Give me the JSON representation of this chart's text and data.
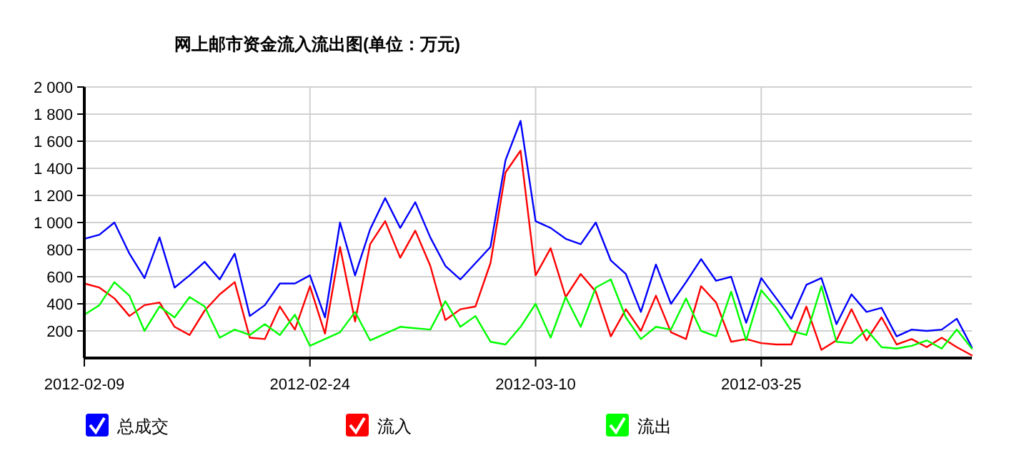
{
  "chart_data": {
    "type": "line",
    "title": "网上邮市资金流入流出图(单位：万元)",
    "x": [
      "2012-02-09",
      "2012-02-10",
      "2012-02-11",
      "2012-02-12",
      "2012-02-13",
      "2012-02-14",
      "2012-02-15",
      "2012-02-16",
      "2012-02-17",
      "2012-02-18",
      "2012-02-19",
      "2012-02-20",
      "2012-02-21",
      "2012-02-22",
      "2012-02-23",
      "2012-02-24",
      "2012-02-25",
      "2012-02-26",
      "2012-02-27",
      "2012-02-28",
      "2012-02-29",
      "2012-03-01",
      "2012-03-02",
      "2012-03-03",
      "2012-03-04",
      "2012-03-05",
      "2012-03-06",
      "2012-03-07",
      "2012-03-08",
      "2012-03-09",
      "2012-03-10",
      "2012-03-11",
      "2012-03-12",
      "2012-03-13",
      "2012-03-14",
      "2012-03-15",
      "2012-03-16",
      "2012-03-17",
      "2012-03-18",
      "2012-03-19",
      "2012-03-20",
      "2012-03-21",
      "2012-03-22",
      "2012-03-23",
      "2012-03-24",
      "2012-03-25",
      "2012-03-26",
      "2012-03-27",
      "2012-03-28",
      "2012-03-29",
      "2012-03-30",
      "2012-03-31",
      "2012-04-01",
      "2012-04-02",
      "2012-04-03",
      "2012-04-04",
      "2012-04-05",
      "2012-04-06",
      "2012-04-07",
      "2012-04-08"
    ],
    "series": [
      {
        "name": "总成交",
        "color": "#0000ff",
        "values": [
          880,
          910,
          1000,
          770,
          590,
          890,
          520,
          610,
          710,
          580,
          770,
          310,
          390,
          550,
          550,
          610,
          300,
          1000,
          610,
          950,
          1180,
          960,
          1150,
          890,
          680,
          580,
          700,
          820,
          1460,
          1750,
          1010,
          960,
          880,
          840,
          1000,
          720,
          620,
          340,
          690,
          400,
          560,
          730,
          570,
          600,
          260,
          590,
          440,
          290,
          540,
          590,
          250,
          470,
          340,
          370,
          160,
          210,
          200,
          210,
          290,
          80
        ]
      },
      {
        "name": "流入",
        "color": "#ff0000",
        "values": [
          550,
          520,
          440,
          310,
          390,
          410,
          230,
          170,
          350,
          470,
          560,
          150,
          140,
          380,
          210,
          530,
          180,
          820,
          270,
          840,
          1010,
          740,
          940,
          680,
          280,
          360,
          380,
          700,
          1370,
          1530,
          610,
          810,
          450,
          620,
          490,
          160,
          360,
          200,
          460,
          190,
          140,
          530,
          410,
          120,
          140,
          110,
          100,
          100,
          380,
          60,
          130,
          360,
          130,
          300,
          100,
          140,
          80,
          150,
          80,
          20
        ]
      },
      {
        "name": "流出",
        "color": "#00ff00",
        "values": [
          320,
          390,
          560,
          460,
          200,
          380,
          300,
          450,
          380,
          150,
          210,
          170,
          250,
          170,
          320,
          90,
          140,
          190,
          340,
          130,
          180,
          230,
          220,
          210,
          420,
          230,
          310,
          120,
          100,
          230,
          400,
          150,
          450,
          230,
          520,
          580,
          300,
          140,
          230,
          210,
          440,
          200,
          160,
          490,
          130,
          500,
          370,
          200,
          170,
          530,
          120,
          110,
          210,
          80,
          70,
          90,
          130,
          70,
          210,
          70
        ]
      }
    ],
    "xlim": [
      "2012-02-09",
      "2012-04-08"
    ],
    "xticks": [
      "2012-02-09",
      "2012-02-24",
      "2012-03-10",
      "2012-03-25"
    ],
    "ylim": [
      0,
      2000
    ],
    "yticks": [
      {
        "value": 200,
        "label": "200"
      },
      {
        "value": 400,
        "label": "400"
      },
      {
        "value": 600,
        "label": "600"
      },
      {
        "value": 800,
        "label": "800"
      },
      {
        "value": 1000,
        "label": "1 000"
      },
      {
        "value": 1200,
        "label": "1 200"
      },
      {
        "value": 1400,
        "label": "1 400"
      },
      {
        "value": 1600,
        "label": "1 600"
      },
      {
        "value": 1800,
        "label": "1 800"
      },
      {
        "value": 2000,
        "label": "2 000"
      }
    ],
    "grid": true,
    "legend": "bottom",
    "marker": "none",
    "line_style": "solid"
  }
}
